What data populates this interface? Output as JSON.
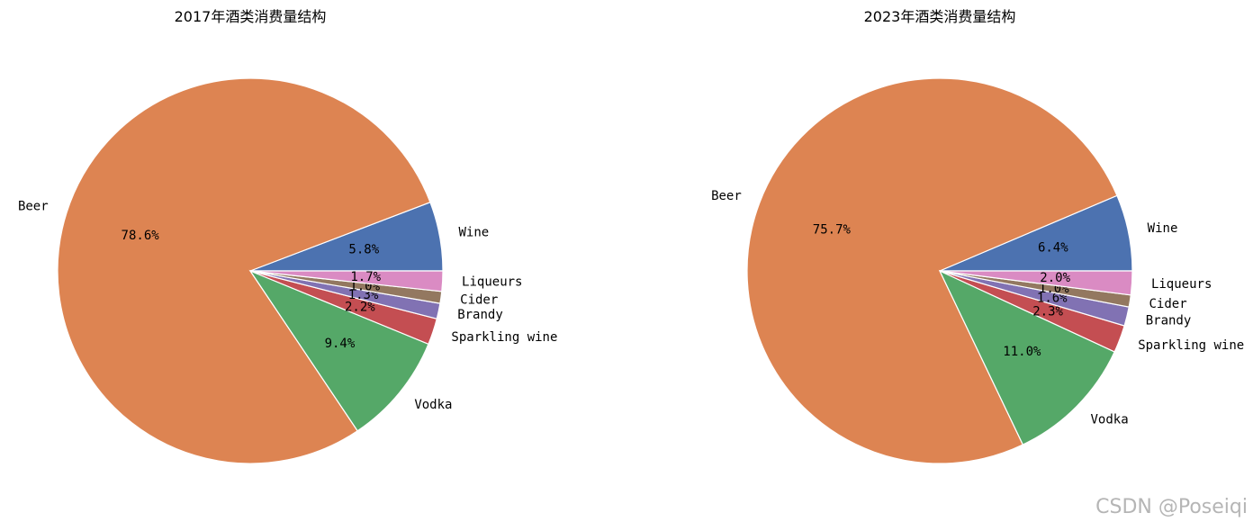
{
  "watermark": "CSDN @Poseiqi",
  "colors": [
    "#4c72b0",
    "#dd8452",
    "#55a868",
    "#c44e52",
    "#8172b3",
    "#937860",
    "#da8bc3"
  ],
  "chart_data": [
    {
      "type": "pie",
      "title": "2017年酒类消费量结构",
      "slices": [
        {
          "label": "Wine",
          "value": 5.8,
          "pct_text": "5.8%"
        },
        {
          "label": "Beer",
          "value": 78.6,
          "pct_text": "78.6%"
        },
        {
          "label": "Vodka",
          "value": 9.4,
          "pct_text": "9.4%"
        },
        {
          "label": "Sparkling wine",
          "value": 2.2,
          "pct_text": "2.2%"
        },
        {
          "label": "Brandy",
          "value": 1.3,
          "pct_text": "1.3%"
        },
        {
          "label": "Cider",
          "value": 1.0,
          "pct_text": "1.0%"
        },
        {
          "label": "Liqueurs",
          "value": 1.7,
          "pct_text": "1.7%"
        }
      ]
    },
    {
      "type": "pie",
      "title": "2023年酒类消费量结构",
      "slices": [
        {
          "label": "Wine",
          "value": 6.4,
          "pct_text": "6.4%"
        },
        {
          "label": "Beer",
          "value": 75.7,
          "pct_text": "75.7%"
        },
        {
          "label": "Vodka",
          "value": 11.0,
          "pct_text": "11.0%"
        },
        {
          "label": "Sparkling wine",
          "value": 2.3,
          "pct_text": "2.3%"
        },
        {
          "label": "Brandy",
          "value": 1.6,
          "pct_text": "1.6%"
        },
        {
          "label": "Cider",
          "value": 1.0,
          "pct_text": "1.0%"
        },
        {
          "label": "Liqueurs",
          "value": 2.0,
          "pct_text": "2.0%"
        }
      ]
    }
  ]
}
